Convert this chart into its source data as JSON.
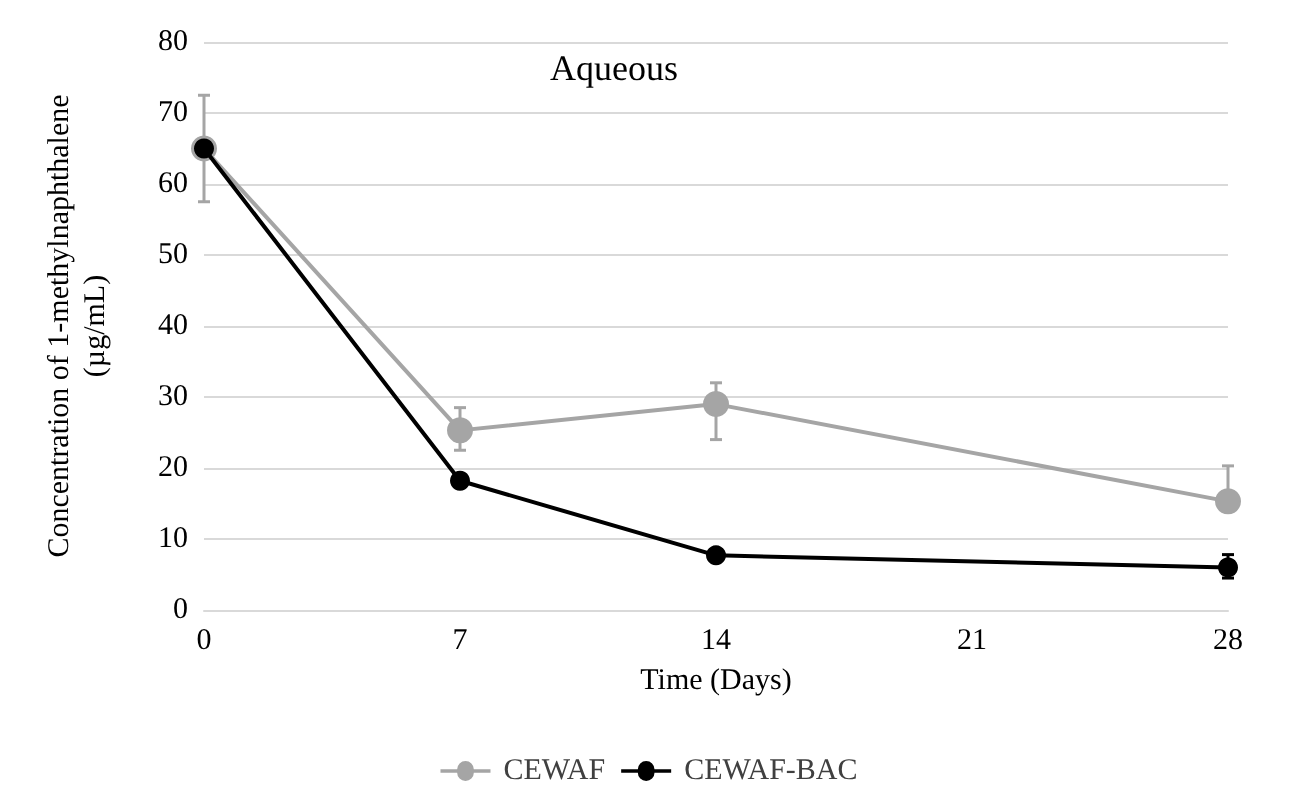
{
  "chart_data": {
    "type": "line",
    "title": "Aqueous",
    "xlabel": "Time (Days)",
    "ylabel": "Concentration of 1-methylnaphthalene (µg/mL)",
    "x": [
      0,
      7,
      14,
      28
    ],
    "xlim": [
      0,
      28
    ],
    "xticks": [
      0,
      7,
      14,
      21,
      28
    ],
    "ylim": [
      0,
      80
    ],
    "yticks": [
      0,
      10,
      20,
      30,
      40,
      50,
      60,
      70,
      80
    ],
    "series": [
      {
        "name": "CEWAF",
        "color": "#a5a5a5",
        "values": [
          65,
          25.3,
          29,
          15.3
        ],
        "errors": [
          [
            57.5,
            72.5
          ],
          [
            22.5,
            28.5
          ],
          [
            24,
            32
          ],
          [
            15.3,
            20.3
          ]
        ]
      },
      {
        "name": "CEWAF-BAC",
        "color": "#000000",
        "values": [
          65,
          18.2,
          7.7,
          6
        ],
        "errors": [
          null,
          null,
          null,
          [
            4.5,
            7.8
          ]
        ]
      }
    ],
    "grid": "y",
    "legend": "bottom",
    "marker": "circle",
    "line_style": "solid"
  }
}
